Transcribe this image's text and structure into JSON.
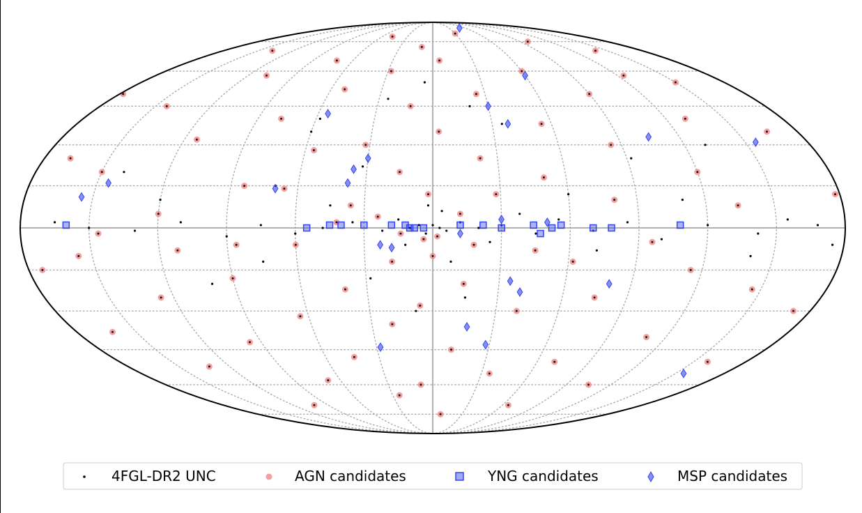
{
  "chart_data": {
    "type": "scatter",
    "projection": "mollweide",
    "coordinates": "galactic",
    "x_range_deg": [
      -180,
      180
    ],
    "y_range_deg": [
      -90,
      90
    ],
    "meridians_deg": [
      -150,
      -120,
      -90,
      -60,
      -30,
      30,
      60,
      90,
      120,
      150
    ],
    "parallels_deg": [
      -75,
      -60,
      -45,
      -30,
      -15,
      15,
      30,
      45,
      60,
      75
    ],
    "grid": true,
    "legend_position": "bottom",
    "colors": {
      "unc": "#000000",
      "agn": "#f08080",
      "agn_center": "#111111",
      "yng": "#3344ee",
      "msp": "#3344ee",
      "grid": "#aaaaaa",
      "axes": "#999999"
    },
    "series": [
      {
        "name": "4FGL-DR2 UNC",
        "marker": "point",
        "points": [
          [
            168,
            1
          ],
          [
            155,
            3
          ],
          [
            142,
            -2
          ],
          [
            120,
            1
          ],
          [
            100,
            -4
          ],
          [
            85,
            2
          ],
          [
            70,
            -1
          ],
          [
            55,
            3
          ],
          [
            45,
            -2
          ],
          [
            30,
            1
          ],
          [
            20,
            0
          ],
          [
            12,
            2
          ],
          [
            6,
            -1
          ],
          [
            3,
            0
          ],
          [
            0,
            1
          ],
          [
            -3,
            -2
          ],
          [
            -6,
            1
          ],
          [
            -10,
            0
          ],
          [
            -15,
            3
          ],
          [
            -22,
            -1
          ],
          [
            -35,
            2
          ],
          [
            -48,
            0
          ],
          [
            -60,
            -2
          ],
          [
            -75,
            1
          ],
          [
            -90,
            -3
          ],
          [
            -110,
            2
          ],
          [
            -130,
            -1
          ],
          [
            -150,
            0
          ],
          [
            -165,
            2
          ],
          [
            110,
            10
          ],
          [
            -60,
            35
          ],
          [
            -58,
            40
          ],
          [
            -25,
            48
          ],
          [
            20,
            45
          ],
          [
            -5,
            55
          ],
          [
            35,
            38
          ],
          [
            -45,
            8
          ],
          [
            -32,
            22
          ],
          [
            72,
            -8
          ],
          [
            -28,
            -18
          ],
          [
            -8,
            -30
          ],
          [
            15,
            -25
          ],
          [
            -75,
            -12
          ],
          [
            140,
            -10
          ],
          [
            -120,
            10
          ],
          [
            60,
            12
          ],
          [
            8,
            -12
          ],
          [
            -2,
            8
          ],
          [
            4,
            6
          ],
          [
            -12,
            -6
          ],
          [
            25,
            -5
          ],
          [
            38,
            5
          ],
          [
            -70,
            15
          ],
          [
            92,
            25
          ],
          [
            -100,
            -20
          ],
          [
            130,
            30
          ],
          [
            -140,
            20
          ],
          [
            175,
            -6
          ]
        ]
      },
      {
        "name": "AGN candidates",
        "marker": "circle",
        "points": [
          [
            178,
            12
          ],
          [
            165,
            35
          ],
          [
            150,
            55
          ],
          [
            140,
            70
          ],
          [
            130,
            40
          ],
          [
            120,
            20
          ],
          [
            115,
            -15
          ],
          [
            110,
            -40
          ],
          [
            105,
            -60
          ],
          [
            98,
            75
          ],
          [
            90,
            50
          ],
          [
            85,
            30
          ],
          [
            80,
            10
          ],
          [
            75,
            -25
          ],
          [
            70,
            -50
          ],
          [
            65,
            -70
          ],
          [
            60,
            60
          ],
          [
            55,
            38
          ],
          [
            50,
            18
          ],
          [
            45,
            -8
          ],
          [
            40,
            -30
          ],
          [
            35,
            -55
          ],
          [
            30,
            80
          ],
          [
            25,
            50
          ],
          [
            22,
            25
          ],
          [
            18,
            -6
          ],
          [
            14,
            -20
          ],
          [
            10,
            -45
          ],
          [
            8,
            -75
          ],
          [
            5,
            65
          ],
          [
            3,
            35
          ],
          [
            2,
            -3
          ],
          [
            0,
            -10
          ],
          [
            -2,
            12
          ],
          [
            -4,
            -4
          ],
          [
            -6,
            -28
          ],
          [
            -8,
            -60
          ],
          [
            -10,
            72
          ],
          [
            -12,
            45
          ],
          [
            -15,
            20
          ],
          [
            -18,
            -12
          ],
          [
            -20,
            -35
          ],
          [
            -25,
            -65
          ],
          [
            -28,
            60
          ],
          [
            -32,
            30
          ],
          [
            -36,
            8
          ],
          [
            -40,
            -22
          ],
          [
            -44,
            -48
          ],
          [
            -48,
            78
          ],
          [
            -52,
            52
          ],
          [
            -56,
            28
          ],
          [
            -60,
            -6
          ],
          [
            -64,
            -32
          ],
          [
            -68,
            -58
          ],
          [
            -72,
            65
          ],
          [
            -78,
            40
          ],
          [
            -84,
            15
          ],
          [
            -90,
            -18
          ],
          [
            -96,
            -42
          ],
          [
            -102,
            -70
          ],
          [
            -108,
            58
          ],
          [
            -114,
            32
          ],
          [
            -120,
            5
          ],
          [
            -126,
            -25
          ],
          [
            -132,
            -52
          ],
          [
            -138,
            70
          ],
          [
            -144,
            45
          ],
          [
            -150,
            20
          ],
          [
            -156,
            -10
          ],
          [
            -162,
            -38
          ],
          [
            -168,
            25
          ],
          [
            -174,
            -15
          ],
          [
            -178,
            50
          ],
          [
            172,
            -30
          ],
          [
            158,
            -50
          ],
          [
            146,
            -22
          ],
          [
            134,
            8
          ],
          [
            124,
            58
          ],
          [
            96,
            -5
          ],
          [
            62,
            -12
          ],
          [
            28,
            12
          ],
          [
            12,
            5
          ],
          [
            -14,
            -2
          ],
          [
            -24,
            4
          ],
          [
            -42,
            2
          ],
          [
            -66,
            14
          ],
          [
            -86,
            -6
          ],
          [
            -112,
            -8
          ],
          [
            -146,
            -2
          ]
        ]
      },
      {
        "name": "YNG candidates",
        "marker": "square",
        "points": [
          [
            -160,
            1
          ],
          [
            -55,
            0
          ],
          [
            -45,
            1
          ],
          [
            -40,
            1
          ],
          [
            -30,
            1
          ],
          [
            -18,
            1
          ],
          [
            -12,
            1
          ],
          [
            -10,
            0
          ],
          [
            -8,
            0
          ],
          [
            -4,
            0
          ],
          [
            12,
            1
          ],
          [
            22,
            1
          ],
          [
            30,
            0
          ],
          [
            44,
            1
          ],
          [
            47,
            -2
          ],
          [
            52,
            0
          ],
          [
            56,
            1
          ],
          [
            70,
            0
          ],
          [
            78,
            0
          ],
          [
            108,
            1
          ]
        ]
      },
      {
        "name": "MSP candidates",
        "marker": "diamond",
        "points": [
          [
            50,
            84
          ],
          [
            60,
            58
          ],
          [
            30,
            45
          ],
          [
            38,
            38
          ],
          [
            -55,
            42
          ],
          [
            105,
            33
          ],
          [
            -30,
            25
          ],
          [
            155,
            31
          ],
          [
            -155,
            11
          ],
          [
            -145,
            16
          ],
          [
            -70,
            14
          ],
          [
            -23,
            -6
          ],
          [
            -18,
            -7
          ],
          [
            -38,
            16
          ],
          [
            12,
            -2
          ],
          [
            35,
            -19
          ],
          [
            40,
            -23
          ],
          [
            80,
            -20
          ],
          [
            17,
            -36
          ],
          [
            -28,
            -44
          ],
          [
            28,
            -43
          ],
          [
            155,
            -55
          ],
          [
            30,
            3
          ],
          [
            50,
            2
          ],
          [
            -36,
            21
          ]
        ]
      }
    ]
  }
}
